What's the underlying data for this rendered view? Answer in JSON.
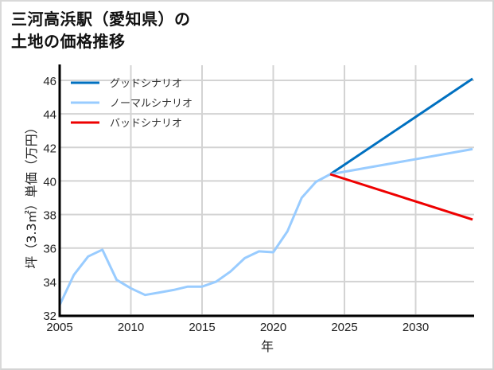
{
  "title": {
    "line1": "三河高浜駅（愛知県）の",
    "line2": "土地の価格推移"
  },
  "chart_data": {
    "type": "line",
    "title": "三河高浜駅（愛知県）の土地の価格推移",
    "xlabel": "年",
    "ylabel": "坪（3.3㎡）単価（万円）",
    "xlim": [
      2005,
      2034
    ],
    "ylim": [
      32,
      46.6
    ],
    "x_ticks": [
      2005,
      2010,
      2015,
      2020,
      2025,
      2030
    ],
    "y_ticks": [
      32,
      34,
      36,
      38,
      40,
      42,
      44,
      46
    ],
    "grid": true,
    "legend_position": "upper left",
    "series": [
      {
        "name": "グッドシナリオ",
        "color": "#0070c0",
        "x": [
          2024,
          2034
        ],
        "values": [
          40.4,
          46.1
        ]
      },
      {
        "name": "ノーマルシナリオ",
        "color": "#99ccff",
        "x": [
          2005,
          2006,
          2007,
          2008,
          2009,
          2010,
          2011,
          2012,
          2013,
          2014,
          2015,
          2016,
          2017,
          2018,
          2019,
          2020,
          2021,
          2022,
          2023,
          2024,
          2034
        ],
        "values": [
          32.6,
          34.4,
          35.5,
          35.9,
          34.1,
          33.6,
          33.2,
          33.35,
          33.5,
          33.7,
          33.7,
          34.0,
          34.6,
          35.4,
          35.8,
          35.75,
          37.0,
          39.0,
          39.95,
          40.4,
          41.9
        ]
      },
      {
        "name": "バッドシナリオ",
        "color": "#ee0000",
        "x": [
          2024,
          2034
        ],
        "values": [
          40.4,
          37.7
        ]
      }
    ]
  }
}
